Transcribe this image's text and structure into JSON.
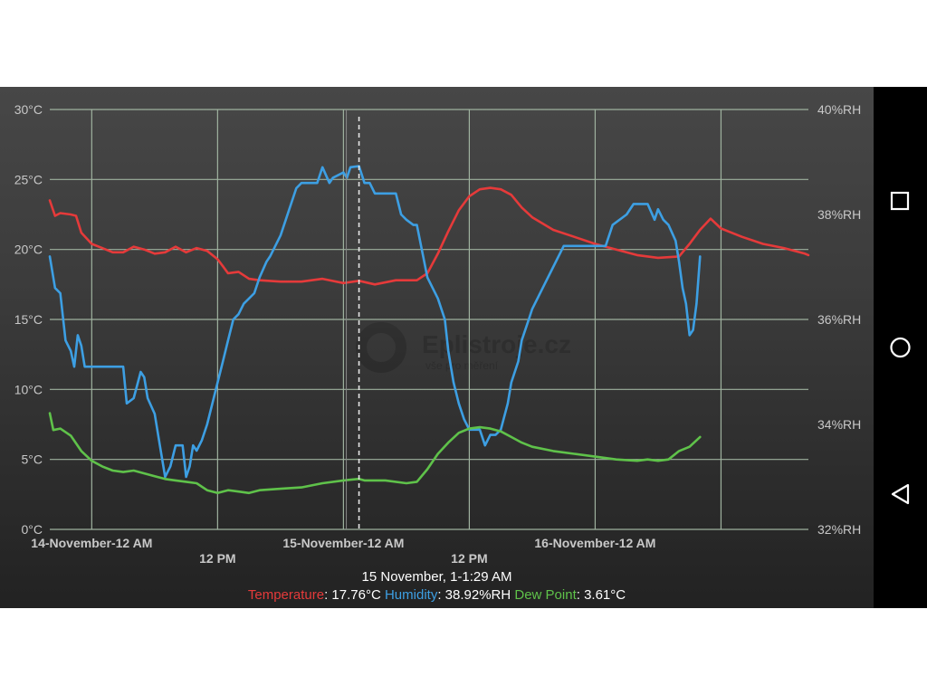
{
  "chart_data": {
    "type": "line",
    "x_range": [
      "2023-11-13T20:00",
      "2023-11-16T20:20"
    ],
    "y_left": {
      "unit": "°C",
      "range": [
        0,
        30
      ],
      "ticks": [
        "0°C",
        "5°C",
        "10°C",
        "15°C",
        "20°C",
        "25°C",
        "30°C"
      ]
    },
    "y_right": {
      "unit": "%RH",
      "range": [
        32,
        40
      ],
      "ticks": [
        "32%RH",
        "34%RH",
        "36%RH",
        "38%RH",
        "40%RH"
      ]
    },
    "x_ticks": [
      {
        "t": "2023-11-14T00:00",
        "label": "14-November-12 AM",
        "row": 1
      },
      {
        "t": "2023-11-14T12:00",
        "label": "12 PM",
        "row": 2
      },
      {
        "t": "2023-11-15T00:00",
        "label": "15-November-12 AM",
        "row": 1
      },
      {
        "t": "2023-11-15T12:00",
        "label": "12 PM",
        "row": 2
      },
      {
        "t": "2023-11-16T00:00",
        "label": "16-November-12 AM",
        "row": 1
      },
      {
        "t": "2023-11-16T12:00"
      }
    ],
    "cursor_time": "2023-11-15T01:29",
    "grid": true,
    "series": [
      {
        "name": "Temperature",
        "axis": "left",
        "color": "#e53a3a",
        "points": [
          [
            "2023-11-13T20:00",
            23.5
          ],
          [
            "2023-11-13T20:30",
            22.4
          ],
          [
            "2023-11-13T21:00",
            22.6
          ],
          [
            "2023-11-13T22:00",
            22.5
          ],
          [
            "2023-11-13T22:30",
            22.4
          ],
          [
            "2023-11-13T23:00",
            21.2
          ],
          [
            "2023-11-14T00:00",
            20.4
          ],
          [
            "2023-11-14T01:00",
            20.1
          ],
          [
            "2023-11-14T02:00",
            19.8
          ],
          [
            "2023-11-14T03:00",
            19.8
          ],
          [
            "2023-11-14T04:00",
            20.2
          ],
          [
            "2023-11-14T05:00",
            20.0
          ],
          [
            "2023-11-14T06:00",
            19.7
          ],
          [
            "2023-11-14T07:00",
            19.8
          ],
          [
            "2023-11-14T08:00",
            20.2
          ],
          [
            "2023-11-14T09:00",
            19.8
          ],
          [
            "2023-11-14T10:00",
            20.1
          ],
          [
            "2023-11-14T11:00",
            19.9
          ],
          [
            "2023-11-14T12:00",
            19.3
          ],
          [
            "2023-11-14T12:30",
            18.8
          ],
          [
            "2023-11-14T13:00",
            18.3
          ],
          [
            "2023-11-14T14:00",
            18.4
          ],
          [
            "2023-11-14T15:00",
            17.9
          ],
          [
            "2023-11-14T16:00",
            17.8
          ],
          [
            "2023-11-14T18:00",
            17.7
          ],
          [
            "2023-11-14T20:00",
            17.7
          ],
          [
            "2023-11-14T22:00",
            17.9
          ],
          [
            "2023-11-15T00:00",
            17.6
          ],
          [
            "2023-11-15T01:29",
            17.76
          ],
          [
            "2023-11-15T03:00",
            17.5
          ],
          [
            "2023-11-15T05:00",
            17.8
          ],
          [
            "2023-11-15T07:00",
            17.8
          ],
          [
            "2023-11-15T08:00",
            18.3
          ],
          [
            "2023-11-15T09:00",
            19.7
          ],
          [
            "2023-11-15T10:00",
            21.3
          ],
          [
            "2023-11-15T11:00",
            22.8
          ],
          [
            "2023-11-15T12:00",
            23.8
          ],
          [
            "2023-11-15T13:00",
            24.3
          ],
          [
            "2023-11-15T14:00",
            24.4
          ],
          [
            "2023-11-15T15:00",
            24.3
          ],
          [
            "2023-11-15T16:00",
            23.9
          ],
          [
            "2023-11-15T17:00",
            23.0
          ],
          [
            "2023-11-15T18:00",
            22.3
          ],
          [
            "2023-11-15T20:00",
            21.4
          ],
          [
            "2023-11-15T22:00",
            20.9
          ],
          [
            "2023-11-16T00:00",
            20.4
          ],
          [
            "2023-11-16T02:00",
            20.0
          ],
          [
            "2023-11-16T04:00",
            19.6
          ],
          [
            "2023-11-16T06:00",
            19.4
          ],
          [
            "2023-11-16T08:00",
            19.5
          ],
          [
            "2023-11-16T09:00",
            20.4
          ],
          [
            "2023-11-16T10:00",
            21.4
          ],
          [
            "2023-11-16T11:00",
            22.2
          ],
          [
            "2023-11-16T12:00",
            21.5
          ],
          [
            "2023-11-16T14:00",
            20.9
          ],
          [
            "2023-11-16T16:00",
            20.4
          ],
          [
            "2023-11-16T18:00",
            20.1
          ],
          [
            "2023-11-16T20:00",
            19.7
          ],
          [
            "2023-11-16T20:20",
            19.6
          ]
        ]
      },
      {
        "name": "Humidity",
        "axis": "right",
        "color": "#3d9fe3",
        "points": [
          [
            "2023-11-13T20:00",
            37.2
          ],
          [
            "2023-11-13T20:15",
            36.9
          ],
          [
            "2023-11-13T20:30",
            36.6
          ],
          [
            "2023-11-13T21:00",
            36.5
          ],
          [
            "2023-11-13T21:30",
            35.6
          ],
          [
            "2023-11-13T22:00",
            35.4
          ],
          [
            "2023-11-13T22:20",
            35.1
          ],
          [
            "2023-11-13T22:40",
            35.7
          ],
          [
            "2023-11-13T23:00",
            35.5
          ],
          [
            "2023-11-13T23:20",
            35.1
          ],
          [
            "2023-11-14T00:00",
            35.1
          ],
          [
            "2023-11-14T02:00",
            35.1
          ],
          [
            "2023-11-14T03:00",
            35.1
          ],
          [
            "2023-11-14T03:20",
            34.4
          ],
          [
            "2023-11-14T04:00",
            34.5
          ],
          [
            "2023-11-14T04:40",
            35.0
          ],
          [
            "2023-11-14T05:00",
            34.9
          ],
          [
            "2023-11-14T05:20",
            34.5
          ],
          [
            "2023-11-14T06:00",
            34.2
          ],
          [
            "2023-11-14T06:30",
            33.6
          ],
          [
            "2023-11-14T07:00",
            33.0
          ],
          [
            "2023-11-14T07:30",
            33.2
          ],
          [
            "2023-11-14T08:00",
            33.6
          ],
          [
            "2023-11-14T08:40",
            33.6
          ],
          [
            "2023-11-14T09:00",
            33.0
          ],
          [
            "2023-11-14T09:20",
            33.2
          ],
          [
            "2023-11-14T09:40",
            33.6
          ],
          [
            "2023-11-14T10:00",
            33.5
          ],
          [
            "2023-11-14T10:30",
            33.7
          ],
          [
            "2023-11-14T11:00",
            34.0
          ],
          [
            "2023-11-14T11:30",
            34.4
          ],
          [
            "2023-11-14T12:00",
            34.8
          ],
          [
            "2023-11-14T12:30",
            35.2
          ],
          [
            "2023-11-14T13:00",
            35.6
          ],
          [
            "2023-11-14T13:30",
            36.0
          ],
          [
            "2023-11-14T14:00",
            36.1
          ],
          [
            "2023-11-14T14:30",
            36.3
          ],
          [
            "2023-11-14T15:30",
            36.5
          ],
          [
            "2023-11-14T16:00",
            36.8
          ],
          [
            "2023-11-14T16:40",
            37.1
          ],
          [
            "2023-11-14T17:00",
            37.2
          ],
          [
            "2023-11-14T17:30",
            37.4
          ],
          [
            "2023-11-14T18:00",
            37.6
          ],
          [
            "2023-11-14T18:30",
            37.9
          ],
          [
            "2023-11-14T19:00",
            38.2
          ],
          [
            "2023-11-14T19:30",
            38.5
          ],
          [
            "2023-11-14T20:00",
            38.6
          ],
          [
            "2023-11-14T21:00",
            38.6
          ],
          [
            "2023-11-14T21:30",
            38.6
          ],
          [
            "2023-11-14T22:00",
            38.9
          ],
          [
            "2023-11-14T22:40",
            38.6
          ],
          [
            "2023-11-14T23:00",
            38.7
          ],
          [
            "2023-11-15T00:00",
            38.8
          ],
          [
            "2023-11-15T00:20",
            38.7
          ],
          [
            "2023-11-15T00:40",
            38.9
          ],
          [
            "2023-11-15T01:29",
            38.92
          ],
          [
            "2023-11-15T02:00",
            38.6
          ],
          [
            "2023-11-15T02:30",
            38.6
          ],
          [
            "2023-11-15T03:00",
            38.4
          ],
          [
            "2023-11-15T04:00",
            38.4
          ],
          [
            "2023-11-15T05:00",
            38.4
          ],
          [
            "2023-11-15T05:30",
            38.0
          ],
          [
            "2023-11-15T06:00",
            37.9
          ],
          [
            "2023-11-15T06:40",
            37.8
          ],
          [
            "2023-11-15T07:00",
            37.8
          ],
          [
            "2023-11-15T07:30",
            37.3
          ],
          [
            "2023-11-15T08:00",
            36.8
          ],
          [
            "2023-11-15T09:00",
            36.4
          ],
          [
            "2023-11-15T09:40",
            36.0
          ],
          [
            "2023-11-15T10:00",
            35.4
          ],
          [
            "2023-11-15T10:30",
            34.8
          ],
          [
            "2023-11-15T11:00",
            34.4
          ],
          [
            "2023-11-15T11:30",
            34.1
          ],
          [
            "2023-11-15T12:00",
            33.9
          ],
          [
            "2023-11-15T13:00",
            33.9
          ],
          [
            "2023-11-15T13:30",
            33.6
          ],
          [
            "2023-11-15T14:00",
            33.8
          ],
          [
            "2023-11-15T14:30",
            33.8
          ],
          [
            "2023-11-15T15:00",
            33.9
          ],
          [
            "2023-11-15T15:40",
            34.4
          ],
          [
            "2023-11-15T16:00",
            34.8
          ],
          [
            "2023-11-15T16:40",
            35.2
          ],
          [
            "2023-11-15T17:00",
            35.6
          ],
          [
            "2023-11-15T17:40",
            36.0
          ],
          [
            "2023-11-15T18:00",
            36.2
          ],
          [
            "2023-11-15T19:00",
            36.6
          ],
          [
            "2023-11-15T20:00",
            37.0
          ],
          [
            "2023-11-15T21:00",
            37.4
          ],
          [
            "2023-11-16T00:00",
            37.4
          ],
          [
            "2023-11-16T01:00",
            37.4
          ],
          [
            "2023-11-16T01:40",
            37.8
          ],
          [
            "2023-11-16T03:00",
            38.0
          ],
          [
            "2023-11-16T03:40",
            38.2
          ],
          [
            "2023-11-16T05:00",
            38.2
          ],
          [
            "2023-11-16T05:40",
            37.9
          ],
          [
            "2023-11-16T06:00",
            38.1
          ],
          [
            "2023-11-16T06:30",
            37.9
          ],
          [
            "2023-11-16T07:00",
            37.8
          ],
          [
            "2023-11-16T07:40",
            37.5
          ],
          [
            "2023-11-16T08:00",
            37.1
          ],
          [
            "2023-11-16T08:20",
            36.6
          ],
          [
            "2023-11-16T08:40",
            36.3
          ],
          [
            "2023-11-16T09:00",
            35.7
          ],
          [
            "2023-11-16T09:20",
            35.8
          ],
          [
            "2023-11-16T09:40",
            36.3
          ],
          [
            "2023-11-16T10:00",
            37.2
          ]
        ]
      },
      {
        "name": "Dew Point",
        "axis": "left",
        "color": "#5fc24a",
        "points": [
          [
            "2023-11-13T20:00",
            8.3
          ],
          [
            "2023-11-13T20:20",
            7.1
          ],
          [
            "2023-11-13T21:00",
            7.2
          ],
          [
            "2023-11-13T22:00",
            6.7
          ],
          [
            "2023-11-13T23:00",
            5.6
          ],
          [
            "2023-11-14T00:00",
            4.9
          ],
          [
            "2023-11-14T01:00",
            4.5
          ],
          [
            "2023-11-14T02:00",
            4.2
          ],
          [
            "2023-11-14T03:00",
            4.1
          ],
          [
            "2023-11-14T04:00",
            4.2
          ],
          [
            "2023-11-14T05:00",
            4.0
          ],
          [
            "2023-11-14T06:00",
            3.8
          ],
          [
            "2023-11-14T07:00",
            3.6
          ],
          [
            "2023-11-14T08:00",
            3.5
          ],
          [
            "2023-11-14T09:00",
            3.4
          ],
          [
            "2023-11-14T10:00",
            3.3
          ],
          [
            "2023-11-14T11:00",
            2.8
          ],
          [
            "2023-11-14T12:00",
            2.6
          ],
          [
            "2023-11-14T13:00",
            2.8
          ],
          [
            "2023-11-14T14:00",
            2.7
          ],
          [
            "2023-11-14T15:00",
            2.6
          ],
          [
            "2023-11-14T16:00",
            2.8
          ],
          [
            "2023-11-14T18:00",
            2.9
          ],
          [
            "2023-11-14T20:00",
            3.0
          ],
          [
            "2023-11-14T22:00",
            3.3
          ],
          [
            "2023-11-15T00:00",
            3.5
          ],
          [
            "2023-11-15T01:29",
            3.61
          ],
          [
            "2023-11-15T02:00",
            3.5
          ],
          [
            "2023-11-15T04:00",
            3.5
          ],
          [
            "2023-11-15T06:00",
            3.3
          ],
          [
            "2023-11-15T07:00",
            3.4
          ],
          [
            "2023-11-15T08:00",
            4.3
          ],
          [
            "2023-11-15T09:00",
            5.4
          ],
          [
            "2023-11-15T10:00",
            6.2
          ],
          [
            "2023-11-15T11:00",
            6.9
          ],
          [
            "2023-11-15T12:00",
            7.2
          ],
          [
            "2023-11-15T13:00",
            7.3
          ],
          [
            "2023-11-15T14:00",
            7.2
          ],
          [
            "2023-11-15T15:00",
            7.0
          ],
          [
            "2023-11-15T16:00",
            6.6
          ],
          [
            "2023-11-15T17:00",
            6.2
          ],
          [
            "2023-11-15T18:00",
            5.9
          ],
          [
            "2023-11-15T20:00",
            5.6
          ],
          [
            "2023-11-15T22:00",
            5.4
          ],
          [
            "2023-11-16T00:00",
            5.2
          ],
          [
            "2023-11-16T02:00",
            5.0
          ],
          [
            "2023-11-16T04:00",
            4.9
          ],
          [
            "2023-11-16T05:00",
            5.0
          ],
          [
            "2023-11-16T06:00",
            4.9
          ],
          [
            "2023-11-16T07:00",
            5.0
          ],
          [
            "2023-11-16T08:00",
            5.6
          ],
          [
            "2023-11-16T09:00",
            5.9
          ],
          [
            "2023-11-16T10:00",
            6.6
          ]
        ]
      }
    ]
  },
  "tooltip": {
    "time": "15 November, 1-1:29 AM",
    "temperature_label": "Temperature",
    "temperature_value": ": 17.76°C ",
    "humidity_label": "Humidity",
    "humidity_value": ": 38.92%RH ",
    "dew_label": "Dew Point",
    "dew_value": ": 3.61°C"
  },
  "watermark": {
    "title": "Eplistroje.cz",
    "subtitle": "vše pro měření"
  },
  "nav": {
    "recents_icon": "square-icon",
    "home_icon": "circle-icon",
    "back_icon": "triangle-back-icon"
  },
  "colors": {
    "grid": "#9fb29f",
    "axis_text": "#c8c8c8",
    "cursor": "#e6e6e6"
  }
}
